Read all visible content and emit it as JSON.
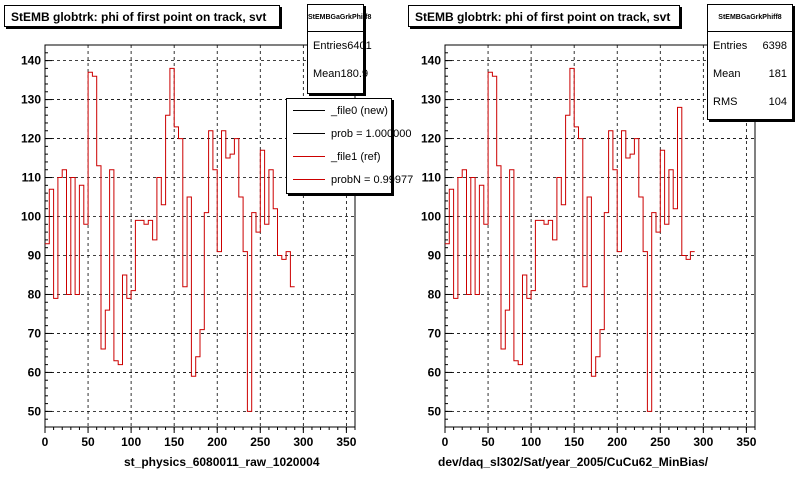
{
  "chart_data": [
    {
      "type": "histogram",
      "title": "StEMB globtrk: phi of first point on track, svt",
      "xlabel": "st_physics_6080011_raw_1020004",
      "xlim": [
        0,
        360
      ],
      "ylim": [
        46,
        144
      ],
      "xticks": [
        0,
        50,
        100,
        150,
        200,
        250,
        300,
        350
      ],
      "yticks": [
        50,
        60,
        70,
        80,
        90,
        100,
        110,
        120,
        130,
        140
      ],
      "grid": true,
      "bin_width": 5,
      "values": [
        93,
        107,
        79,
        110,
        112,
        80,
        110,
        80,
        108,
        98,
        137,
        136,
        113,
        66,
        76,
        112,
        63,
        62,
        85,
        79,
        81,
        99,
        99,
        98,
        99,
        94,
        110,
        103,
        126,
        138,
        123,
        120,
        82,
        105,
        59,
        64,
        71,
        101,
        122,
        112,
        91,
        122,
        115,
        116,
        120,
        105,
        91,
        50,
        101,
        96,
        117,
        98,
        112,
        102,
        90,
        89,
        91,
        82
      ],
      "stats": {
        "title": "StEMBGaGrkPhiff8",
        "entries_label": "Entries",
        "entries": "6401",
        "mean_label": "Mean",
        "mean": "180.9"
      },
      "legend": {
        "placement": "top-right",
        "entries": [
          {
            "label": "_file0 (new)",
            "color": "#000000"
          },
          {
            "label": "prob = 1.000000",
            "color": "#000000"
          },
          {
            "label": "_file1 (ref)",
            "color": "#cc0000"
          },
          {
            "label": "probN = 0.99977",
            "color": "#cc0000"
          }
        ]
      },
      "line_color": "#cc0000"
    },
    {
      "type": "histogram",
      "title": "StEMB globtrk: phi of first point on track, svt",
      "xlabel": "dev/daq_sl302/Sat/year_2005/CuCu62_MinBias/",
      "xlim": [
        0,
        360
      ],
      "ylim": [
        46,
        144
      ],
      "xticks": [
        0,
        50,
        100,
        150,
        200,
        250,
        300,
        350
      ],
      "yticks": [
        50,
        60,
        70,
        80,
        90,
        100,
        110,
        120,
        130,
        140
      ],
      "grid": true,
      "bin_width": 5,
      "values": [
        93,
        107,
        79,
        110,
        112,
        80,
        110,
        80,
        108,
        98,
        137,
        136,
        113,
        66,
        76,
        112,
        63,
        62,
        85,
        79,
        81,
        99,
        99,
        98,
        99,
        94,
        110,
        103,
        126,
        138,
        123,
        120,
        82,
        105,
        59,
        64,
        71,
        101,
        122,
        112,
        91,
        122,
        115,
        116,
        120,
        105,
        91,
        50,
        101,
        96,
        117,
        98,
        112,
        102,
        128,
        90,
        89,
        91
      ],
      "stats": {
        "title": "StEMBGaGrkPhiff8",
        "entries_label": "Entries",
        "entries": "6398",
        "mean_label": "Mean",
        "mean": "181",
        "rms_label": "RMS",
        "rms": "104"
      },
      "line_color": "#cc0000"
    }
  ]
}
